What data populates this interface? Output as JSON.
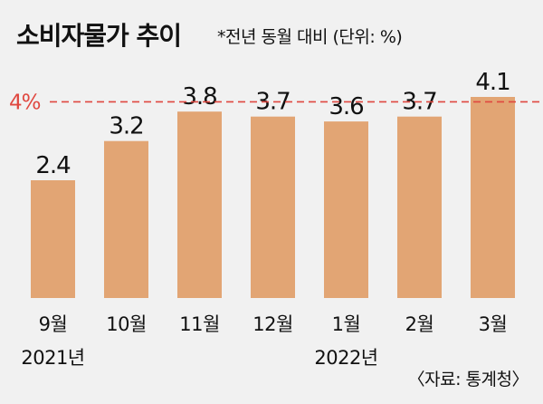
{
  "title": "소비자물가 추이",
  "subtitle": "*전년 동월 대비 (단위: %)",
  "source": "〈자료: 통계청〉",
  "colors": {
    "bar": "#e2a574",
    "reference": "#e0473f",
    "background": "#f1f1f1",
    "text": "#111111"
  },
  "chart_data": {
    "type": "bar",
    "categories": [
      "9월",
      "10월",
      "11월",
      "12월",
      "1월",
      "2월",
      "3월"
    ],
    "category_sublabels": [
      "2021년",
      "",
      "",
      "",
      "2022년",
      "",
      ""
    ],
    "values": [
      2.4,
      3.2,
      3.8,
      3.7,
      3.6,
      3.7,
      4.1
    ],
    "value_labels": [
      "2.4",
      "3.2",
      "3.8",
      "3.7",
      "3.6",
      "3.7",
      "4.1"
    ],
    "reference_line": {
      "value": 4,
      "label": "4%"
    },
    "ylim": [
      0,
      4.1
    ],
    "grid": false,
    "title": "소비자물가 추이",
    "xlabel": "",
    "ylabel": ""
  }
}
